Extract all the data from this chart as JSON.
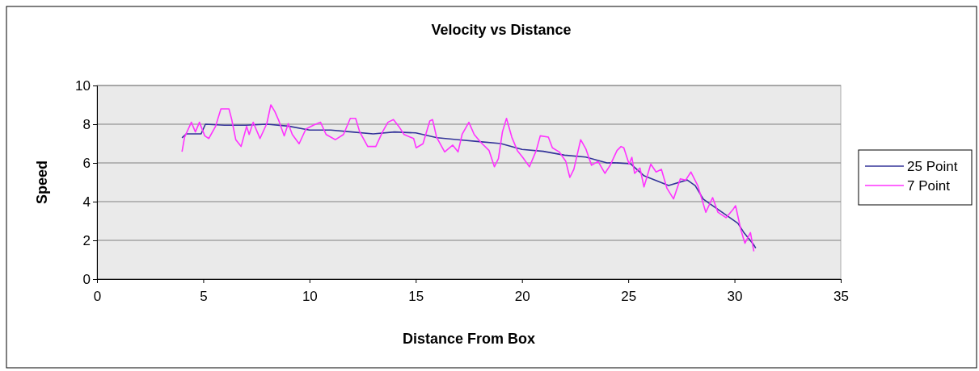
{
  "chart_data": {
    "type": "line",
    "title": "Velocity vs Distance",
    "xlabel": "Distance From Box",
    "ylabel": "Speed",
    "xlim": [
      0,
      35
    ],
    "xticks": [
      0,
      5,
      10,
      15,
      20,
      25,
      30,
      35
    ],
    "ylim": [
      0,
      10
    ],
    "yticks": [
      0,
      2,
      4,
      6,
      8,
      10
    ],
    "grid": "y",
    "legend": "right",
    "marker": "none",
    "line_style": "solid",
    "series": [
      {
        "name": "25 Point",
        "color": "#333399",
        "x": [
          4.0,
          4.2,
          4.9,
          5.1,
          6,
          7,
          8,
          9,
          10,
          11,
          12,
          13,
          14,
          15,
          16,
          17,
          18,
          19,
          20,
          21,
          22,
          23,
          24,
          24.34,
          25.1,
          25.75,
          26.9,
          27.77,
          28.15,
          28.53,
          29.4,
          30.16,
          30.43,
          30.89,
          31.0
        ],
        "values": [
          7.3,
          7.5,
          7.5,
          8.0,
          7.95,
          7.95,
          8.0,
          7.9,
          7.7,
          7.7,
          7.6,
          7.5,
          7.6,
          7.55,
          7.3,
          7.2,
          7.1,
          7.0,
          6.7,
          6.6,
          6.4,
          6.3,
          6.0,
          6.01,
          5.96,
          5.33,
          4.83,
          5.12,
          4.83,
          4.13,
          3.46,
          2.88,
          2.42,
          1.79,
          1.6
        ]
      },
      {
        "name": "7 Point",
        "color": "#ff33ff",
        "x": [
          4.0,
          4.12,
          4.44,
          4.63,
          4.82,
          5.07,
          5.26,
          5.58,
          5.83,
          6.21,
          6.34,
          6.53,
          6.78,
          7.04,
          7.16,
          7.35,
          7.67,
          7.99,
          8.18,
          8.37,
          8.56,
          8.81,
          9.0,
          9.19,
          9.51,
          9.83,
          10.2,
          10.52,
          10.78,
          11.22,
          11.6,
          11.92,
          12.17,
          12.36,
          12.74,
          13.12,
          13.44,
          13.69,
          13.95,
          14.2,
          14.45,
          14.9,
          15.02,
          15.34,
          15.66,
          15.79,
          15.98,
          16.36,
          16.74,
          16.99,
          17.18,
          17.5,
          17.75,
          18.07,
          18.45,
          18.7,
          18.89,
          19.08,
          19.27,
          19.52,
          19.78,
          20.03,
          20.35,
          20.67,
          20.86,
          21.24,
          21.43,
          21.75,
          22.06,
          22.25,
          22.44,
          22.76,
          23.01,
          23.27,
          23.58,
          23.9,
          24.15,
          24.47,
          24.66,
          24.79,
          25.04,
          25.17,
          25.3,
          25.55,
          25.74,
          26.06,
          26.31,
          26.56,
          26.82,
          27.13,
          27.45,
          27.7,
          27.95,
          28.27,
          28.65,
          28.97,
          29.22,
          29.6,
          29.92,
          30.05,
          30.3,
          30.49,
          30.75,
          30.91
        ],
        "values": [
          6.58,
          7.33,
          8.1,
          7.6,
          8.1,
          7.4,
          7.26,
          7.89,
          8.79,
          8.79,
          8.24,
          7.2,
          6.85,
          7.89,
          7.47,
          8.1,
          7.26,
          8.03,
          9.0,
          8.65,
          8.17,
          7.4,
          8.03,
          7.47,
          6.99,
          7.75,
          7.96,
          8.1,
          7.47,
          7.2,
          7.47,
          8.3,
          8.3,
          7.61,
          6.85,
          6.85,
          7.61,
          8.1,
          8.24,
          7.89,
          7.47,
          7.26,
          6.78,
          6.99,
          8.17,
          8.24,
          7.33,
          6.57,
          6.92,
          6.57,
          7.47,
          8.1,
          7.47,
          7.05,
          6.64,
          5.8,
          6.22,
          7.61,
          8.3,
          7.33,
          6.64,
          6.29,
          5.8,
          6.64,
          7.4,
          7.33,
          6.78,
          6.57,
          6.08,
          5.25,
          5.67,
          7.2,
          6.71,
          5.88,
          6.08,
          5.46,
          5.88,
          6.64,
          6.85,
          6.78,
          5.94,
          6.29,
          5.46,
          5.74,
          4.76,
          5.94,
          5.53,
          5.67,
          4.69,
          4.14,
          5.18,
          5.11,
          5.53,
          4.83,
          3.45,
          4.21,
          3.45,
          3.17,
          3.58,
          3.79,
          2.54,
          1.85,
          2.4,
          1.43
        ]
      }
    ]
  }
}
